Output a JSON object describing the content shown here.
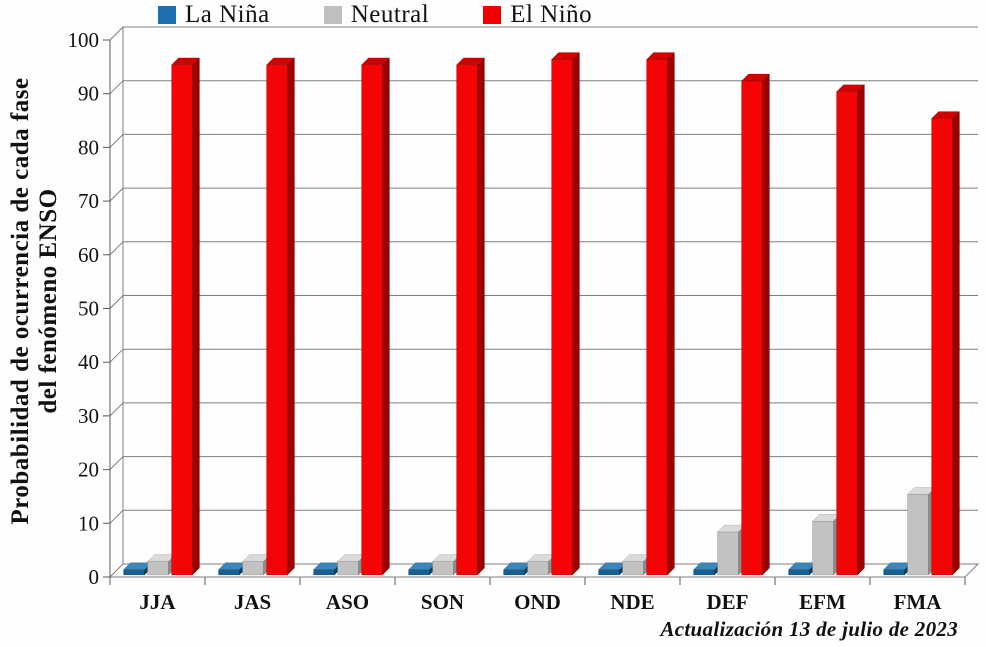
{
  "chart_data": {
    "type": "bar",
    "style": "3d-clustered-column",
    "title": "",
    "categories": [
      "JJA",
      "JAS",
      "ASO",
      "SON",
      "OND",
      "NDE",
      "DEF",
      "EFM",
      "FMA"
    ],
    "series": [
      {
        "name": "La Niña",
        "color": "#1E6FB0",
        "front": "#175F93",
        "side": "#0D3D63",
        "top": "#3C85B8",
        "values": [
          1,
          1,
          1,
          1,
          1,
          1,
          1,
          1,
          1
        ]
      },
      {
        "name": "Neutral",
        "color": "#BFBFBF",
        "front": "#C2C2C2",
        "side": "#8C8C8C",
        "top": "#DADADA",
        "values": [
          2.5,
          2.5,
          2.5,
          2.5,
          2.5,
          2.5,
          8,
          10,
          15
        ]
      },
      {
        "name": "El Niño",
        "color": "#EE0000",
        "front": "#F40404",
        "side": "#9B0000",
        "top": "#D00000",
        "values": [
          95,
          95,
          95,
          95,
          96,
          96,
          92,
          90,
          85
        ]
      }
    ],
    "ylabel_line1": "Probabilidad de ocurrencia de cada fase",
    "ylabel_line2": "del fenómeno ENSO",
    "xlabel": "",
    "ylim": [
      0,
      100
    ],
    "yticks": [
      0,
      10,
      20,
      30,
      40,
      50,
      60,
      70,
      80,
      90,
      100
    ],
    "grid": true,
    "legend_position": "top",
    "footer": "Actualización 13 de julio de 2023",
    "colors": {
      "gridline": "#7F7F7F",
      "axis": "#595959",
      "background": "#FFFFFF",
      "text": "#111111"
    }
  }
}
